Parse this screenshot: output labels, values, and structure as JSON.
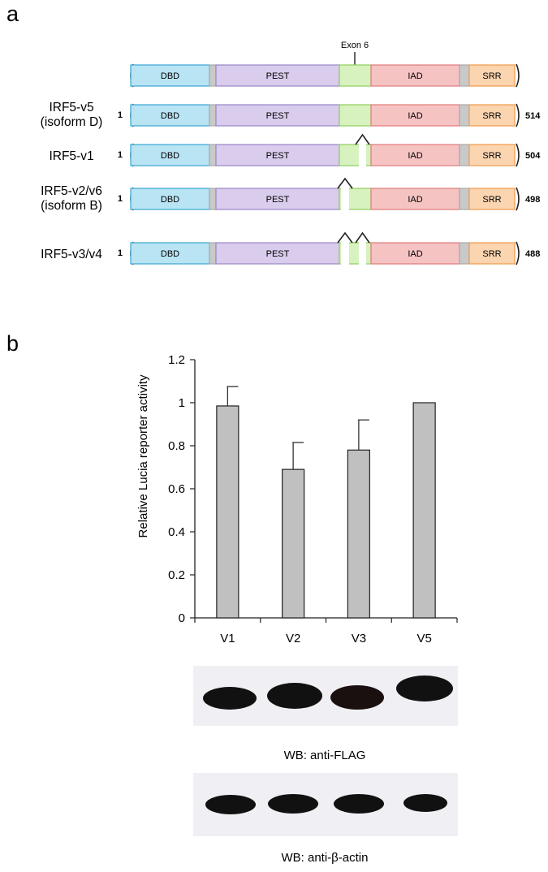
{
  "panel_a": {
    "letter": "a",
    "exon_label": "Exon 6",
    "domain_colors": {
      "DBD": "#b9e4f4",
      "DBD_border": "#3aa6d0",
      "PEST": "#d9ccec",
      "PEST_border": "#9a86c8",
      "exon6": "#d8f2bf",
      "exon6_border": "#8fcf5c",
      "IAD": "#f6c3c3",
      "IAD_border": "#e07a7a",
      "linker": "#c9c9c9",
      "SRR": "#fbd4b0",
      "SRR_border": "#ef9a4a"
    },
    "domain_labels": {
      "DBD": "DBD",
      "PEST": "PEST",
      "IAD": "IAD",
      "SRR": "SRR"
    },
    "isoforms": [
      {
        "id": "top",
        "name": [],
        "start": "",
        "end": "",
        "deletion": "none"
      },
      {
        "id": "v5",
        "name": [
          "IRF5-v5",
          "(isoform D)"
        ],
        "start": "1",
        "end": "514",
        "deletion": "none"
      },
      {
        "id": "v1",
        "name": [
          "IRF5-v1"
        ],
        "start": "1",
        "end": "504",
        "deletion": "right"
      },
      {
        "id": "v2",
        "name": [
          "IRF5-v2/v6",
          "(isoform B)"
        ],
        "start": "1",
        "end": "498",
        "deletion": "left"
      },
      {
        "id": "v3",
        "name": [
          "IRF5-v3/v4"
        ],
        "start": "1",
        "end": "488",
        "deletion": "both"
      }
    ]
  },
  "panel_b": {
    "letter": "b",
    "wb_flag_label": "WB: anti-FLAG",
    "wb_actin_label": "WB: anti-β-actin"
  },
  "chart_data": {
    "type": "bar",
    "categories": [
      "V1",
      "V2",
      "V3",
      "V5"
    ],
    "values": [
      0.985,
      0.69,
      0.78,
      1.0
    ],
    "errors": [
      0.09,
      0.125,
      0.14,
      0
    ],
    "title": "",
    "xlabel": "",
    "ylabel": "Relative Lucia reporter activity",
    "ylim": [
      0,
      1.2
    ],
    "yticks": [
      0,
      0.2,
      0.4,
      0.6,
      0.8,
      1,
      1.2
    ],
    "ytick_labels": [
      "0",
      "0.2",
      "0.4",
      "0.6",
      "0.8",
      "1",
      "1.2"
    ],
    "bar_color": "#c0c0c0",
    "grid": false,
    "legend": "none"
  }
}
